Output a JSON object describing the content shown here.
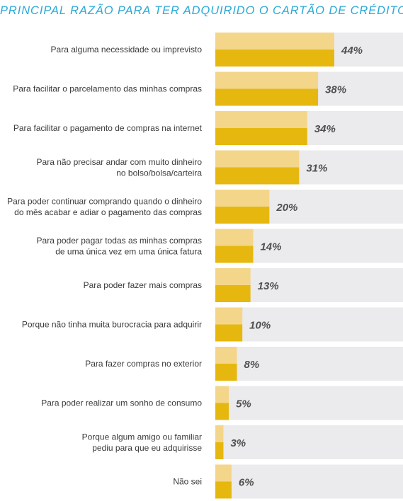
{
  "chart_data": {
    "type": "bar",
    "orientation": "horizontal",
    "title": "PRINCIPAL RAZÃO PARA TER ADQUIRIDO O CARTÃO DE CRÉDITO",
    "xlim": [
      0,
      100
    ],
    "grid": false,
    "colors": {
      "track": "#ebeaec",
      "bar_light": "#f4d68a",
      "bar_dark": "#e6b80f",
      "title": "#29a9d8",
      "label": "#3a3a3a",
      "value": "#505050"
    },
    "categories": [
      [
        "Para alguma necessidade ou imprevisto"
      ],
      [
        "Para facilitar o parcelamento das minhas compras"
      ],
      [
        "Para facilitar o pagamento de compras na internet"
      ],
      [
        "Para não precisar andar com muito dinheiro",
        "no bolso/bolsa/carteira"
      ],
      [
        "Para poder continuar comprando quando o dinheiro",
        "do mês acabar e adiar o pagamento das compras"
      ],
      [
        "Para poder pagar todas as minhas compras",
        "de uma única vez em uma única fatura"
      ],
      [
        "Para poder fazer mais compras"
      ],
      [
        "Porque não tinha muita burocracia para adquirir"
      ],
      [
        "Para fazer compras no exterior"
      ],
      [
        "Para poder realizar um sonho de consumo"
      ],
      [
        "Porque algum amigo ou familiar",
        "pediu para que eu adquirisse"
      ],
      [
        "Não sei"
      ]
    ],
    "values": [
      44,
      38,
      34,
      31,
      20,
      14,
      13,
      10,
      8,
      5,
      3,
      6
    ],
    "value_labels": [
      "44%",
      "38%",
      "34%",
      "31%",
      "20%",
      "14%",
      "13%",
      "10%",
      "8%",
      "5%",
      "3%",
      "6%"
    ]
  }
}
